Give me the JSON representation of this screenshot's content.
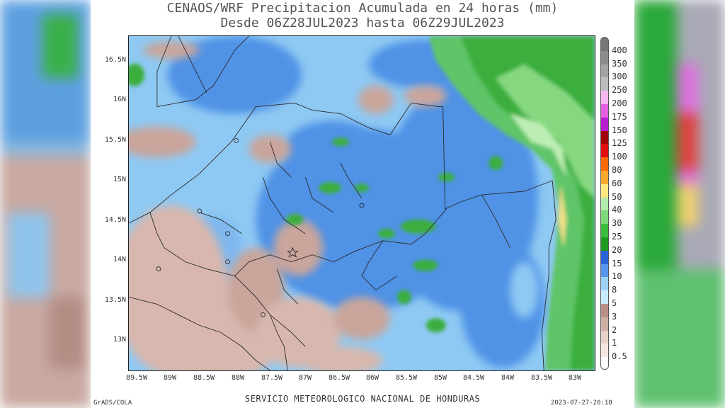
{
  "title_line1": "CENAOS/WRF Precipitacion Acumulada en 24 horas (mm)",
  "title_line2": "Desde 06Z28JUL2023 hasta 06Z29JUL2023",
  "lat_labels": [
    "16.5N",
    "16N",
    "15.5N",
    "15N",
    "14.5N",
    "14N",
    "13.5N",
    "13N"
  ],
  "lon_labels": [
    "89.5W",
    "89W",
    "88.5W",
    "88W",
    "87.5W",
    "87W",
    "86.5W",
    "86W",
    "85.5W",
    "85W",
    "84.5W",
    "84W",
    "83.5W",
    "83W"
  ],
  "colorbar": {
    "labels": [
      "400",
      "350",
      "300",
      "250",
      "200",
      "175",
      "150",
      "125",
      "100",
      "80",
      "60",
      "50",
      "40",
      "30",
      "25",
      "20",
      "15",
      "10",
      "8",
      "5",
      "3",
      "2",
      "1",
      "0.5"
    ],
    "colors": [
      "#777777",
      "#8c8c8c",
      "#a3a3a3",
      "#bdbdbd",
      "#f5b8f0",
      "#e060e0",
      "#b81fd0",
      "#a00000",
      "#e01010",
      "#ff6a00",
      "#ffa830",
      "#ffe680",
      "#b0ecaa",
      "#7ed87a",
      "#3cbc3c",
      "#1e9a1e",
      "#2a64d8",
      "#5a96ec",
      "#9fd2f8",
      "#c9ecfc",
      "#b78f87",
      "#cfaea6",
      "#e6d0c8",
      "#f3e6e0",
      "#ffffff"
    ]
  },
  "footer": {
    "center": "SERVICIO METEOROLOGICO NACIONAL DE HONDURAS",
    "left": "GrADS/COLA",
    "right": "2023-07-27-20:10"
  }
}
